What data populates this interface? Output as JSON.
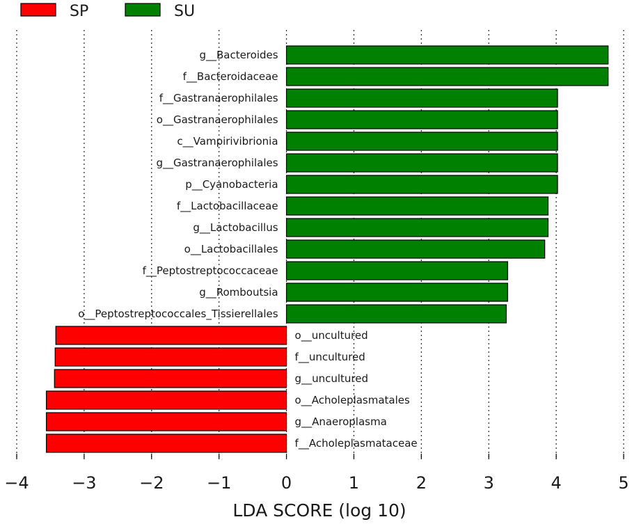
{
  "chart_data": {
    "type": "bar",
    "orientation": "horizontal",
    "title": "",
    "xlabel": "LDA SCORE (log 10)",
    "ylabel": "",
    "xlim": [
      -4,
      5
    ],
    "xticks": [
      -4,
      -3,
      -2,
      -1,
      0,
      1,
      2,
      3,
      4,
      5
    ],
    "xtick_labels": [
      "−4",
      "−3",
      "−2",
      "−1",
      "0",
      "1",
      "2",
      "3",
      "4",
      "5"
    ],
    "grid": "vertical dotted",
    "legend": {
      "position": "top-left",
      "entries": [
        {
          "name": "SP",
          "color": "#ff0000"
        },
        {
          "name": "SU",
          "color": "#008000"
        }
      ]
    },
    "series": [
      {
        "name": "SU",
        "color": "#008000"
      },
      {
        "name": "SP",
        "color": "#ff0000"
      }
    ],
    "bars": [
      {
        "label": "g__Bacteroides",
        "value": 4.77,
        "group": "SU"
      },
      {
        "label": "f__Bacteroidaceae",
        "value": 4.77,
        "group": "SU"
      },
      {
        "label": "f__Gastranaerophilales",
        "value": 4.02,
        "group": "SU"
      },
      {
        "label": "o__Gastranaerophilales",
        "value": 4.02,
        "group": "SU"
      },
      {
        "label": "c__Vampirivibrionia",
        "value": 4.02,
        "group": "SU"
      },
      {
        "label": "g__Gastranaerophilales",
        "value": 4.02,
        "group": "SU"
      },
      {
        "label": "p__Cyanobacteria",
        "value": 4.02,
        "group": "SU"
      },
      {
        "label": "f__Lactobacillaceae",
        "value": 3.88,
        "group": "SU"
      },
      {
        "label": "g__Lactobacillus",
        "value": 3.88,
        "group": "SU"
      },
      {
        "label": "o__Lactobacillales",
        "value": 3.83,
        "group": "SU"
      },
      {
        "label": "f__Peptostreptococcaceae",
        "value": 3.28,
        "group": "SU"
      },
      {
        "label": "g__Romboutsia",
        "value": 3.28,
        "group": "SU"
      },
      {
        "label": "o__Peptostreptococcales_Tissierellales",
        "value": 3.26,
        "group": "SU"
      },
      {
        "label": "o__uncultured",
        "value": -3.42,
        "group": "SP"
      },
      {
        "label": "f__uncultured",
        "value": -3.43,
        "group": "SP"
      },
      {
        "label": "g__uncultured",
        "value": -3.44,
        "group": "SP"
      },
      {
        "label": "o__Acholeplasmatales",
        "value": -3.56,
        "group": "SP"
      },
      {
        "label": "g__Anaeroplasma",
        "value": -3.56,
        "group": "SP"
      },
      {
        "label": "f__Acholeplasmataceae",
        "value": -3.56,
        "group": "SP"
      }
    ]
  }
}
